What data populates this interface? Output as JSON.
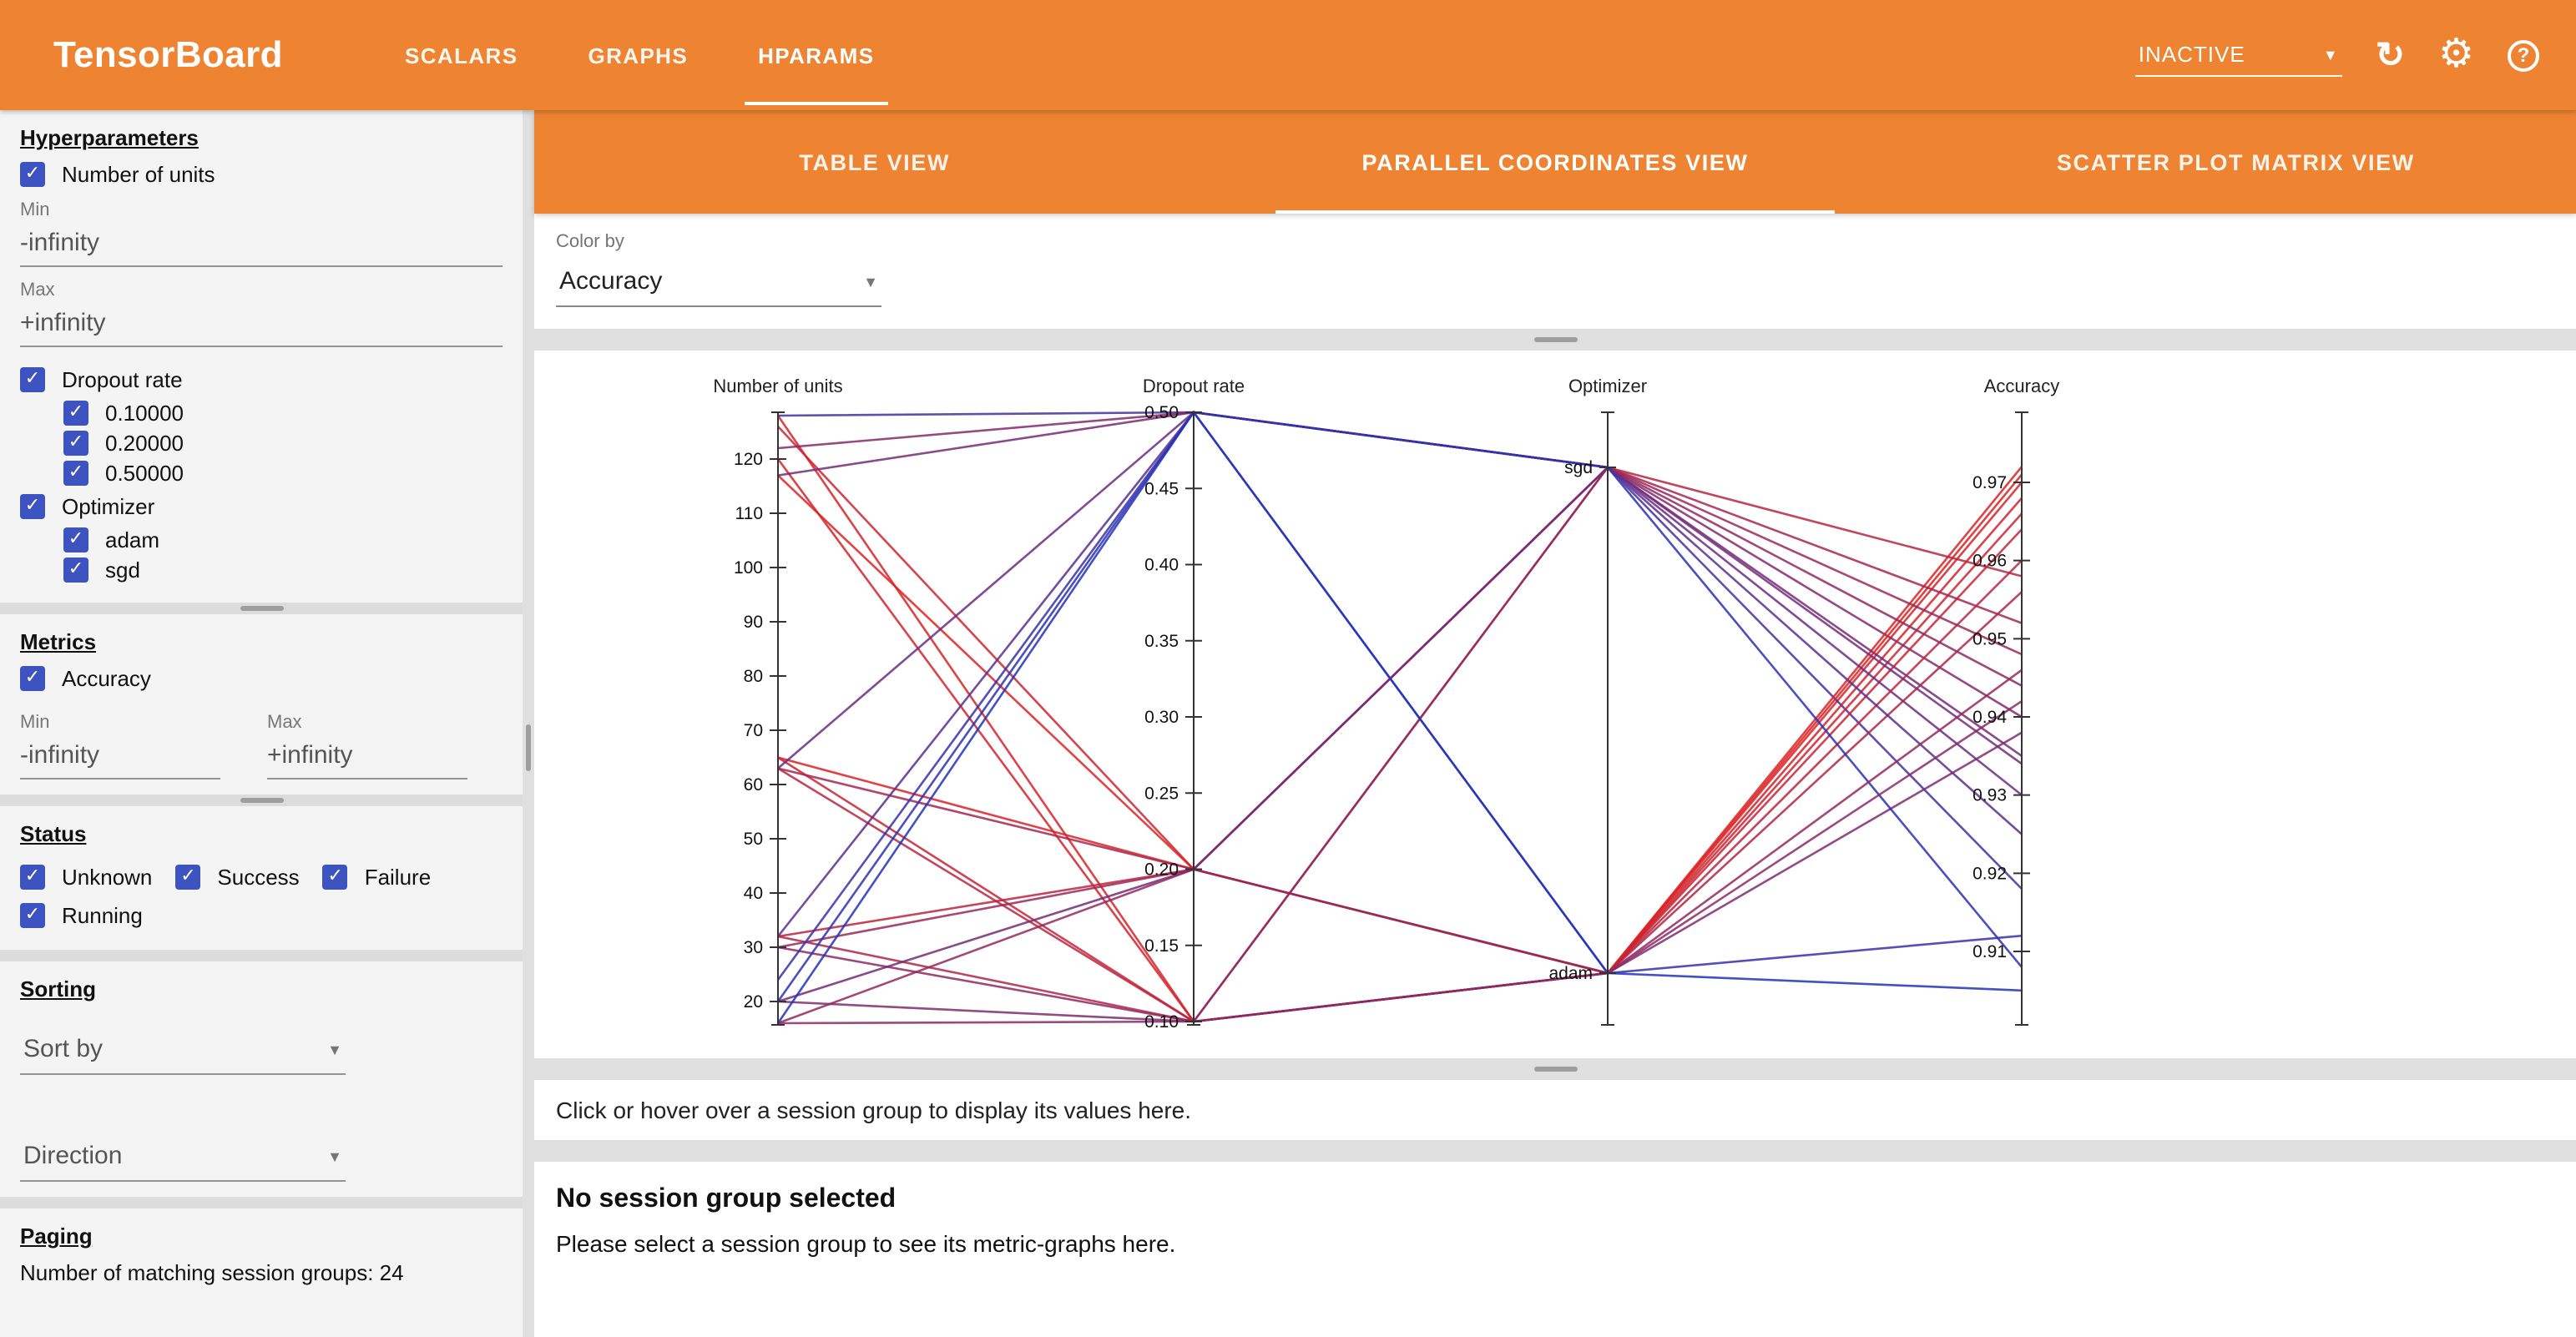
{
  "header": {
    "title": "TensorBoard",
    "nav": [
      {
        "label": "SCALARS"
      },
      {
        "label": "GRAPHS"
      },
      {
        "label": "HPARAMS"
      }
    ],
    "active_nav": "HPARAMS",
    "status_select": {
      "value": "INACTIVE"
    }
  },
  "sidebar": {
    "hyperparameters": {
      "heading": "Hyperparameters",
      "number_of_units": {
        "label": "Number of units",
        "min_label": "Min",
        "min_value": "-infinity",
        "max_label": "Max",
        "max_value": "+infinity"
      },
      "dropout_rate": {
        "label": "Dropout rate",
        "options": [
          {
            "label": "0.10000"
          },
          {
            "label": "0.20000"
          },
          {
            "label": "0.50000"
          }
        ]
      },
      "optimizer": {
        "label": "Optimizer",
        "options": [
          {
            "label": "adam"
          },
          {
            "label": "sgd"
          }
        ]
      }
    },
    "metrics": {
      "heading": "Metrics",
      "accuracy": {
        "label": "Accuracy",
        "min_label": "Min",
        "min_value": "-infinity",
        "max_label": "Max",
        "max_value": "+infinity"
      }
    },
    "status": {
      "heading": "Status",
      "options": [
        {
          "label": "Unknown"
        },
        {
          "label": "Success"
        },
        {
          "label": "Failure"
        },
        {
          "label": "Running"
        }
      ]
    },
    "sorting": {
      "heading": "Sorting",
      "sort_by_label": "Sort by",
      "direction_label": "Direction"
    },
    "paging": {
      "heading": "Paging",
      "summary": "Number of matching session groups: 24"
    }
  },
  "main": {
    "tabs": [
      {
        "label": "TABLE VIEW"
      },
      {
        "label": "PARALLEL COORDINATES VIEW"
      },
      {
        "label": "SCATTER PLOT MATRIX VIEW"
      }
    ],
    "active_tab": "PARALLEL COORDINATES VIEW",
    "color_by": {
      "label": "Color by",
      "value": "Accuracy"
    },
    "hover_message": "Click or hover over a session group to display its values here.",
    "no_selection": {
      "title": "No session group selected",
      "subtitle": "Please select a session group to see its metric-graphs here."
    }
  },
  "chart_data": {
    "type": "parallel_coordinates",
    "color_by": "Accuracy",
    "color_scale": {
      "low": "#2233bb",
      "high": "#dd2222"
    },
    "axes": [
      {
        "name": "Number of units",
        "type": "numeric",
        "ticks": [
          20,
          30,
          40,
          50,
          60,
          70,
          80,
          90,
          100,
          110,
          120
        ],
        "tick_labels": [
          "20",
          "30",
          "40",
          "50",
          "60",
          "70",
          "80",
          "90",
          "100",
          "110",
          "120"
        ],
        "range": [
          16,
          128
        ]
      },
      {
        "name": "Dropout rate",
        "type": "numeric",
        "ticks": [
          0.1,
          0.15,
          0.2,
          0.25,
          0.3,
          0.35,
          0.4,
          0.45,
          0.5
        ],
        "tick_labels": [
          "0.10",
          "0.15",
          "0.20",
          "0.25",
          "0.30",
          "0.35",
          "0.40",
          "0.45",
          "0.50"
        ],
        "range": [
          0.1,
          0.5
        ]
      },
      {
        "name": "Optimizer",
        "type": "categorical",
        "categories": [
          "sgd",
          "adam"
        ]
      },
      {
        "name": "Accuracy",
        "type": "numeric",
        "ticks": [
          0.91,
          0.92,
          0.93,
          0.94,
          0.95,
          0.96,
          0.97
        ],
        "tick_labels": [
          "0.91",
          "0.92",
          "0.93",
          "0.94",
          "0.95",
          "0.96",
          "0.97"
        ],
        "range": [
          0.9,
          0.98
        ]
      }
    ],
    "sessions": [
      {
        "units": 128,
        "dropout": 0.1,
        "optimizer": "adam",
        "accuracy": 0.97
      },
      {
        "units": 128,
        "dropout": 0.5,
        "optimizer": "sgd",
        "accuracy": 0.918
      },
      {
        "units": 126,
        "dropout": 0.2,
        "optimizer": "adam",
        "accuracy": 0.966
      },
      {
        "units": 122,
        "dropout": 0.5,
        "optimizer": "sgd",
        "accuracy": 0.94
      },
      {
        "units": 120,
        "dropout": 0.1,
        "optimizer": "adam",
        "accuracy": 0.968
      },
      {
        "units": 117,
        "dropout": 0.2,
        "optimizer": "adam",
        "accuracy": 0.972
      },
      {
        "units": 117,
        "dropout": 0.5,
        "optimizer": "sgd",
        "accuracy": 0.935
      },
      {
        "units": 65,
        "dropout": 0.1,
        "optimizer": "adam",
        "accuracy": 0.964
      },
      {
        "units": 65,
        "dropout": 0.2,
        "optimizer": "adam",
        "accuracy": 0.971
      },
      {
        "units": 63,
        "dropout": 0.5,
        "optimizer": "sgd",
        "accuracy": 0.93
      },
      {
        "units": 63,
        "dropout": 0.1,
        "optimizer": "sgd",
        "accuracy": 0.958
      },
      {
        "units": 63,
        "dropout": 0.2,
        "optimizer": "sgd",
        "accuracy": 0.952
      },
      {
        "units": 32,
        "dropout": 0.1,
        "optimizer": "adam",
        "accuracy": 0.956
      },
      {
        "units": 32,
        "dropout": 0.2,
        "optimizer": "adam",
        "accuracy": 0.96
      },
      {
        "units": 32,
        "dropout": 0.5,
        "optimizer": "sgd",
        "accuracy": 0.925
      },
      {
        "units": 30,
        "dropout": 0.1,
        "optimizer": "sgd",
        "accuracy": 0.944
      },
      {
        "units": 30,
        "dropout": 0.2,
        "optimizer": "sgd",
        "accuracy": 0.948
      },
      {
        "units": 24,
        "dropout": 0.5,
        "optimizer": "adam",
        "accuracy": 0.912
      },
      {
        "units": 20,
        "dropout": 0.1,
        "optimizer": "adam",
        "accuracy": 0.938
      },
      {
        "units": 20,
        "dropout": 0.2,
        "optimizer": "sgd",
        "accuracy": 0.934
      },
      {
        "units": 20,
        "dropout": 0.5,
        "optimizer": "sgd",
        "accuracy": 0.908
      },
      {
        "units": 16,
        "dropout": 0.1,
        "optimizer": "adam",
        "accuracy": 0.942
      },
      {
        "units": 16,
        "dropout": 0.2,
        "optimizer": "adam",
        "accuracy": 0.946
      },
      {
        "units": 16,
        "dropout": 0.5,
        "optimizer": "adam",
        "accuracy": 0.905
      }
    ]
  }
}
